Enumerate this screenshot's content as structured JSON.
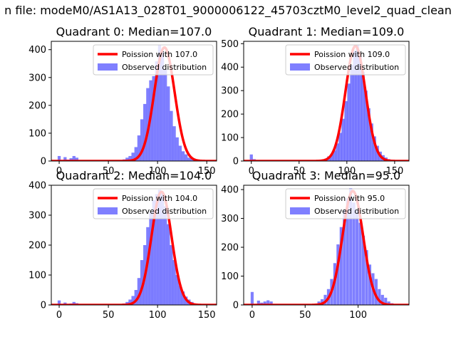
{
  "figure": {
    "suptitle": "n file: modeM0/AS1A13_028T01_9000006122_45703cztM0_level2_quad_clean"
  },
  "chart_data": [
    {
      "type": "bar",
      "title": "Quadrant 0: Median=107.0",
      "xlim": [
        -8,
        160
      ],
      "ylim": [
        0,
        430
      ],
      "xticks": [
        0,
        50,
        100,
        150
      ],
      "yticks": [
        0,
        100,
        200,
        300,
        400
      ],
      "legend": {
        "position": "top-right",
        "entries": [
          "Poission with 107.0",
          "Observed distribution"
        ]
      },
      "poisson_mean": 107.0,
      "poisson_peak": 408,
      "bin_width": 3.1,
      "histogram": {
        "x": [
          0,
          3,
          6,
          9,
          12,
          15,
          18,
          21,
          24,
          27,
          30,
          33,
          36,
          39,
          42,
          45,
          48,
          51,
          54,
          57,
          60,
          63,
          66,
          69,
          72,
          75,
          78,
          81,
          84,
          87,
          90,
          93,
          96,
          99,
          102,
          105,
          108,
          111,
          114,
          117,
          120,
          123,
          126,
          129,
          132,
          135,
          138,
          141,
          144,
          147,
          150
        ],
        "values": [
          18,
          3,
          14,
          5,
          10,
          18,
          12,
          2,
          2,
          0,
          0,
          0,
          0,
          0,
          0,
          0,
          0,
          0,
          0,
          0,
          0,
          3,
          6,
          12,
          18,
          30,
          50,
          92,
          150,
          205,
          262,
          290,
          305,
          358,
          418,
          395,
          330,
          268,
          180,
          125,
          85,
          55,
          35,
          24,
          12,
          8,
          5,
          2,
          0,
          0,
          0
        ]
      }
    },
    {
      "type": "bar",
      "title": "Quadrant 1: Median=109.0",
      "xlim": [
        -8,
        165
      ],
      "ylim": [
        0,
        510
      ],
      "xticks": [
        0,
        50,
        100,
        150
      ],
      "yticks": [
        0,
        100,
        200,
        300,
        400,
        500
      ],
      "legend": {
        "position": "top-right",
        "entries": [
          "Poission with 109.0",
          "Observed distribution"
        ]
      },
      "poisson_mean": 109.0,
      "poisson_peak": 490,
      "bin_width": 3.2,
      "histogram": {
        "x": [
          0,
          3,
          6,
          9,
          12,
          15,
          18,
          21,
          24,
          27,
          30,
          33,
          36,
          39,
          42,
          45,
          48,
          51,
          54,
          57,
          60,
          63,
          66,
          69,
          72,
          75,
          78,
          81,
          84,
          87,
          90,
          93,
          96,
          99,
          102,
          105,
          108,
          111,
          114,
          117,
          120,
          123,
          126,
          129,
          132,
          135,
          138,
          141,
          144,
          147,
          150,
          153,
          156
        ],
        "values": [
          28,
          8,
          3,
          2,
          2,
          2,
          0,
          0,
          0,
          0,
          0,
          0,
          0,
          0,
          0,
          0,
          0,
          0,
          0,
          0,
          0,
          0,
          0,
          0,
          2,
          5,
          10,
          20,
          28,
          45,
          75,
          120,
          180,
          255,
          330,
          410,
          470,
          495,
          445,
          380,
          300,
          225,
          160,
          105,
          65,
          40,
          25,
          15,
          8,
          5,
          2,
          0,
          0
        ]
      }
    },
    {
      "type": "bar",
      "title": "Quadrant 2: Median=104.0",
      "xlim": [
        -8,
        160
      ],
      "ylim": [
        0,
        400
      ],
      "xticks": [
        0,
        50,
        100,
        150
      ],
      "yticks": [
        0,
        100,
        200,
        300,
        400
      ],
      "legend": {
        "position": "top-right",
        "entries": [
          "Poission with 104.0",
          "Observed distribution"
        ]
      },
      "poisson_mean": 104.0,
      "poisson_peak": 378,
      "bin_width": 3.1,
      "histogram": {
        "x": [
          0,
          3,
          6,
          9,
          12,
          15,
          18,
          21,
          24,
          27,
          30,
          33,
          36,
          39,
          42,
          45,
          48,
          51,
          54,
          57,
          60,
          63,
          66,
          69,
          72,
          75,
          78,
          81,
          84,
          87,
          90,
          93,
          96,
          99,
          102,
          105,
          108,
          111,
          114,
          117,
          120,
          123,
          126,
          129,
          132,
          135,
          138,
          141,
          144,
          147,
          150
        ],
        "values": [
          15,
          2,
          8,
          3,
          5,
          10,
          6,
          2,
          0,
          0,
          0,
          0,
          0,
          0,
          0,
          0,
          0,
          0,
          0,
          0,
          0,
          2,
          5,
          10,
          18,
          30,
          50,
          90,
          150,
          200,
          260,
          310,
          350,
          370,
          385,
          378,
          330,
          270,
          200,
          150,
          100,
          65,
          45,
          28,
          18,
          10,
          5,
          3,
          2,
          0,
          0
        ]
      }
    },
    {
      "type": "bar",
      "title": "Quadrant 3: Median=95.0",
      "xlim": [
        -8,
        148
      ],
      "ylim": [
        0,
        415
      ],
      "xticks": [
        0,
        50,
        100
      ],
      "yticks": [
        0,
        100,
        200,
        300,
        400
      ],
      "legend": {
        "position": "top-right",
        "entries": [
          "Poission with 95.0",
          "Observed distribution"
        ]
      },
      "poisson_mean": 95.0,
      "poisson_peak": 395,
      "bin_width": 2.8,
      "histogram": {
        "x": [
          0,
          3,
          6,
          9,
          12,
          15,
          18,
          21,
          24,
          27,
          30,
          33,
          36,
          39,
          42,
          45,
          48,
          51,
          54,
          57,
          60,
          63,
          66,
          69,
          72,
          75,
          78,
          81,
          84,
          87,
          90,
          93,
          96,
          99,
          102,
          105,
          108,
          111,
          114,
          117,
          120,
          123,
          126,
          129,
          132,
          135,
          138,
          141
        ],
        "values": [
          45,
          3,
          15,
          8,
          12,
          16,
          12,
          2,
          0,
          0,
          0,
          0,
          0,
          0,
          0,
          0,
          0,
          0,
          0,
          0,
          5,
          12,
          20,
          35,
          55,
          90,
          145,
          210,
          270,
          330,
          370,
          405,
          355,
          330,
          285,
          240,
          190,
          140,
          110,
          90,
          55,
          35,
          25,
          12,
          6,
          3,
          2,
          0
        ]
      }
    }
  ]
}
